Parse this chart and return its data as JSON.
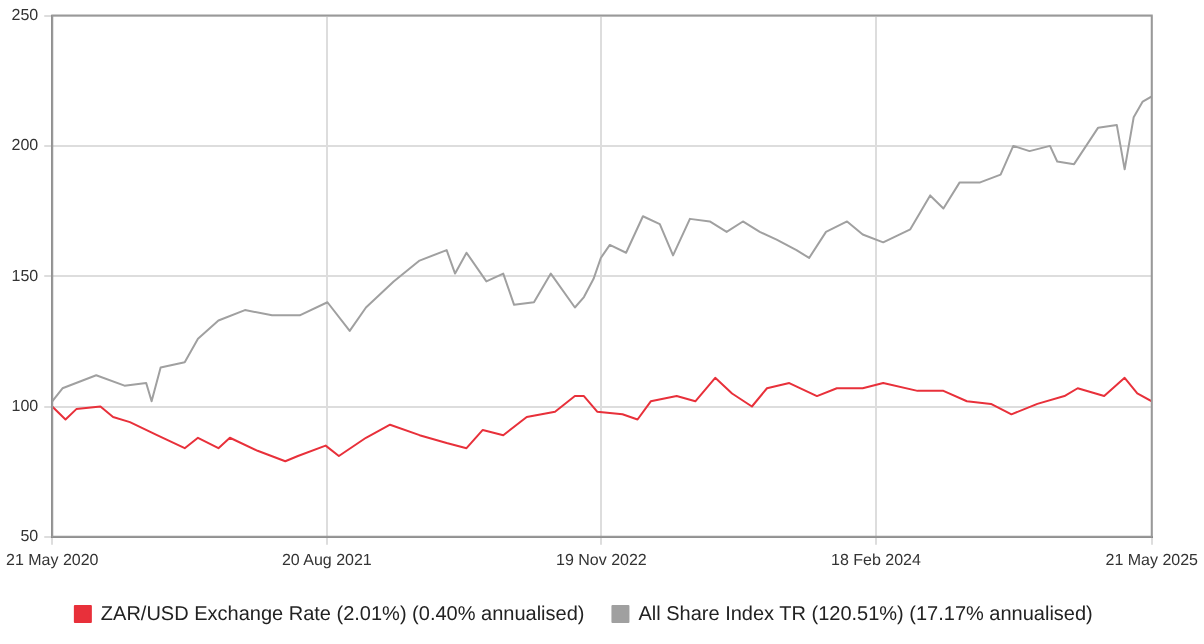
{
  "chart_data": {
    "type": "line",
    "xlim": [
      "2020-05-21",
      "2025-05-21"
    ],
    "xticks": [
      {
        "value": "2020-05-21",
        "label": "21 May 2020"
      },
      {
        "value": "2021-08-20",
        "label": "20 Aug 2021"
      },
      {
        "value": "2022-11-19",
        "label": "19 Nov 2022"
      },
      {
        "value": "2024-02-18",
        "label": "18 Feb 2024"
      },
      {
        "value": "2025-05-21",
        "label": "21 May 2025"
      }
    ],
    "ylim": [
      50,
      250
    ],
    "yticks": [
      50,
      100,
      150,
      200,
      250
    ],
    "grid": true,
    "legend": "bottom",
    "marker": "none",
    "line_style": "solid",
    "series": [
      {
        "name": "ZAR/USD Exchange Rate (2.01%) (0.40% annualised)",
        "color": "#e8303a",
        "x": [
          "2020-05-21",
          "2020-06-12",
          "2020-06-30",
          "2020-08-09",
          "2020-08-30",
          "2020-09-27",
          "2020-11-11",
          "2020-12-27",
          "2021-01-18",
          "2021-02-21",
          "2021-03-12",
          "2021-04-27",
          "2021-06-12",
          "2021-07-03",
          "2021-08-18",
          "2021-09-09",
          "2021-10-24",
          "2021-12-03",
          "2022-01-21",
          "2022-03-07",
          "2022-04-09",
          "2022-05-06",
          "2022-06-09",
          "2022-07-18",
          "2022-09-03",
          "2022-10-06",
          "2022-10-21",
          "2022-11-12",
          "2022-12-24",
          "2023-01-18",
          "2023-02-09",
          "2023-03-24",
          "2023-04-24",
          "2023-05-27",
          "2023-06-24",
          "2023-07-27",
          "2023-08-21",
          "2023-09-27",
          "2023-11-12",
          "2023-12-15",
          "2024-01-27",
          "2024-03-01",
          "2024-04-27",
          "2024-06-09",
          "2024-07-18",
          "2024-08-27",
          "2024-09-30",
          "2024-11-12",
          "2024-12-27",
          "2025-01-18",
          "2025-03-03",
          "2025-04-06",
          "2025-04-27",
          "2025-05-21"
        ],
        "values": [
          100,
          95,
          99,
          100,
          96,
          94,
          89,
          84,
          88,
          84,
          88,
          83,
          79,
          81,
          85,
          81,
          88,
          93,
          89,
          86,
          84,
          91,
          89,
          96,
          98,
          104,
          104,
          98,
          97,
          95,
          102,
          104,
          102,
          111,
          105,
          100,
          107,
          109,
          104,
          107,
          107,
          109,
          106,
          106,
          102,
          101,
          97,
          101,
          104,
          107,
          104,
          111,
          105,
          102
        ]
      },
      {
        "name": "All Share Index TR (120.51%) (17.17% annualised)",
        "color": "#a0a0a0",
        "x": [
          "2020-05-21",
          "2020-06-07",
          "2020-08-02",
          "2020-09-18",
          "2020-10-24",
          "2020-11-02",
          "2020-11-17",
          "2020-12-27",
          "2021-01-18",
          "2021-02-21",
          "2021-04-06",
          "2021-05-21",
          "2021-07-06",
          "2021-08-21",
          "2021-09-27",
          "2021-10-24",
          "2021-12-09",
          "2022-01-21",
          "2022-03-07",
          "2022-03-21",
          "2022-04-09",
          "2022-05-12",
          "2022-06-09",
          "2022-06-27",
          "2022-07-30",
          "2022-08-27",
          "2022-10-06",
          "2022-10-21",
          "2022-11-06",
          "2022-11-18",
          "2022-12-03",
          "2022-12-30",
          "2023-01-27",
          "2023-02-24",
          "2023-03-18",
          "2023-04-15",
          "2023-05-18",
          "2023-06-15",
          "2023-07-12",
          "2023-08-09",
          "2023-09-06",
          "2023-10-09",
          "2023-10-30",
          "2023-11-27",
          "2024-01-01",
          "2024-01-27",
          "2024-03-01",
          "2024-04-15",
          "2024-05-18",
          "2024-06-09",
          "2024-07-06",
          "2024-08-09",
          "2024-09-12",
          "2024-10-03",
          "2024-10-30",
          "2024-12-03",
          "2024-12-15",
          "2025-01-12",
          "2025-02-21",
          "2025-03-24",
          "2025-04-06",
          "2025-04-21",
          "2025-05-06",
          "2025-05-21"
        ],
        "values": [
          102,
          107,
          112,
          108,
          109,
          102,
          115,
          117,
          126,
          133,
          137,
          135,
          135,
          140,
          129,
          138,
          148,
          156,
          160,
          151,
          159,
          148,
          151,
          139,
          140,
          151,
          138,
          142,
          149,
          157,
          162,
          159,
          173,
          170,
          158,
          172,
          171,
          167,
          171,
          167,
          164,
          160,
          157,
          167,
          171,
          166,
          163,
          168,
          181,
          176,
          186,
          186,
          189,
          200,
          198,
          200,
          194,
          193,
          207,
          208,
          191,
          211,
          217,
          219
        ]
      }
    ]
  }
}
